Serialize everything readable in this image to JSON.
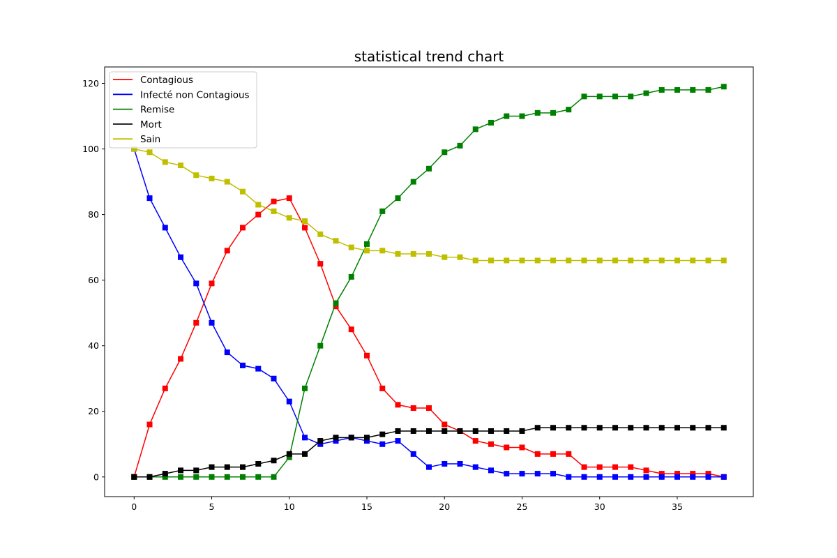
{
  "chart_data": {
    "type": "line",
    "title": "statistical trend chart",
    "xlabel": "",
    "ylabel": "",
    "xlim": [
      -1.9,
      39.9
    ],
    "ylim": [
      -6,
      125
    ],
    "xticks": [
      0,
      5,
      10,
      15,
      20,
      25,
      30,
      35
    ],
    "yticks": [
      0,
      20,
      40,
      60,
      80,
      100,
      120
    ],
    "grid": false,
    "legend_position": "top-left",
    "marker": "square",
    "x": [
      0,
      1,
      2,
      3,
      4,
      5,
      6,
      7,
      8,
      9,
      10,
      11,
      12,
      13,
      14,
      15,
      16,
      17,
      18,
      19,
      20,
      21,
      22,
      23,
      24,
      25,
      26,
      27,
      28,
      29,
      30,
      31,
      32,
      33,
      34,
      35,
      36,
      37,
      38
    ],
    "series": [
      {
        "name": "Contagious",
        "color": "#ff0000",
        "values": [
          0,
          16,
          27,
          36,
          47,
          59,
          69,
          76,
          80,
          84,
          85,
          76,
          65,
          52,
          45,
          37,
          27,
          22,
          21,
          21,
          16,
          14,
          11,
          10,
          9,
          9,
          7,
          7,
          7,
          3,
          3,
          3,
          3,
          2,
          1,
          1,
          1,
          1,
          0
        ]
      },
      {
        "name": "Infecté non Contagious",
        "color": "#0000ff",
        "values": [
          100,
          85,
          76,
          67,
          59,
          47,
          38,
          34,
          33,
          30,
          23,
          12,
          10,
          11,
          12,
          11,
          10,
          11,
          7,
          3,
          4,
          4,
          3,
          2,
          1,
          1,
          1,
          1,
          0,
          0,
          0,
          0,
          0,
          0,
          0,
          0,
          0,
          0,
          0
        ]
      },
      {
        "name": "Remise",
        "color": "#008000",
        "values": [
          0,
          0,
          0,
          0,
          0,
          0,
          0,
          0,
          0,
          0,
          6,
          27,
          40,
          53,
          61,
          71,
          81,
          85,
          90,
          94,
          99,
          101,
          106,
          108,
          110,
          110,
          111,
          111,
          112,
          116,
          116,
          116,
          116,
          117,
          118,
          118,
          118,
          118,
          119
        ]
      },
      {
        "name": "Mort",
        "color": "#000000",
        "values": [
          0,
          0,
          1,
          2,
          2,
          3,
          3,
          3,
          4,
          5,
          7,
          7,
          11,
          12,
          12,
          12,
          13,
          14,
          14,
          14,
          14,
          14,
          14,
          14,
          14,
          14,
          15,
          15,
          15,
          15,
          15,
          15,
          15,
          15,
          15,
          15,
          15,
          15,
          15
        ]
      },
      {
        "name": "Sain",
        "color": "#bfbf00",
        "values": [
          100,
          99,
          96,
          95,
          92,
          91,
          90,
          87,
          83,
          81,
          79,
          78,
          74,
          72,
          70,
          69,
          69,
          68,
          68,
          68,
          67,
          67,
          66,
          66,
          66,
          66,
          66,
          66,
          66,
          66,
          66,
          66,
          66,
          66,
          66,
          66,
          66,
          66,
          66
        ]
      }
    ]
  }
}
